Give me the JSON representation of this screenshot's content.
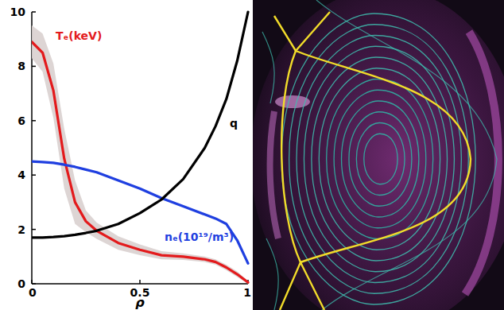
{
  "chart_data": {
    "type": "line",
    "x": [
      0,
      0.05,
      0.1,
      0.15,
      0.2,
      0.25,
      0.3,
      0.4,
      0.5,
      0.6,
      0.7,
      0.8,
      0.85,
      0.9,
      0.95,
      1.0
    ],
    "xlabel": "ρ",
    "xlim": [
      0,
      1
    ],
    "xticks": [
      0,
      0.5,
      1
    ],
    "ylim": [
      0,
      10
    ],
    "yticks": [
      0,
      2,
      4,
      6,
      8,
      10
    ],
    "grid": false,
    "series": [
      {
        "name": "Tₑ(keV)",
        "color": "#e31a1c",
        "values": [
          8.9,
          8.5,
          7.1,
          4.6,
          3.0,
          2.3,
          1.95,
          1.5,
          1.25,
          1.05,
          1.0,
          0.9,
          0.8,
          0.6,
          0.35,
          0.05
        ],
        "errors": [
          0.6,
          0.7,
          1.0,
          1.1,
          0.8,
          0.4,
          0.3,
          0.25,
          0.2,
          0.15,
          0.12,
          0.1,
          0.1,
          0.1,
          0.1,
          0.05
        ]
      },
      {
        "name": "nₑ(10¹⁹/m³)",
        "color": "#1f3fe0",
        "values": [
          4.5,
          4.48,
          4.45,
          4.38,
          4.3,
          4.2,
          4.1,
          3.8,
          3.5,
          3.15,
          2.85,
          2.55,
          2.4,
          2.2,
          1.6,
          0.75
        ]
      },
      {
        "name": "q",
        "color": "#000000",
        "values": [
          1.7,
          1.7,
          1.72,
          1.75,
          1.8,
          1.87,
          1.95,
          2.2,
          2.6,
          3.1,
          3.85,
          5.0,
          5.8,
          6.8,
          8.2,
          10
        ]
      }
    ]
  }
}
